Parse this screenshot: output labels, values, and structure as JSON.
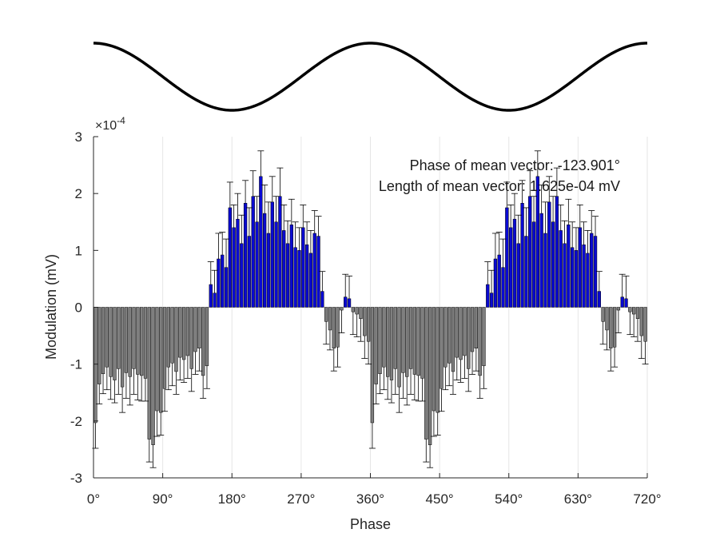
{
  "chart_data": {
    "type": "bar",
    "xlabel": "Phase",
    "ylabel": "Modulation (mV)",
    "y_exponent_label": "×10-4",
    "y_exponent_base": "×10",
    "y_exponent_power": "-4",
    "xlim": [
      0,
      720
    ],
    "ylim": [
      -3,
      3
    ],
    "x_unit_scale": 0.0001,
    "x_ticks": [
      0,
      90,
      180,
      270,
      360,
      450,
      540,
      630,
      720
    ],
    "x_tick_labels": [
      "0°",
      "90°",
      "180°",
      "270°",
      "360°",
      "450°",
      "540°",
      "630°",
      "720°"
    ],
    "y_ticks": [
      -3,
      -2,
      -1,
      0,
      1,
      2,
      3
    ],
    "y_tick_labels": [
      "-3",
      "-2",
      "-1",
      "0",
      "1",
      "2",
      "3"
    ],
    "grid": "vertical-only",
    "bin_width_deg": 5,
    "annotations": [
      "Phase of mean vector: -123.901°",
      "Length of mean vector: 1.625e-04 mV"
    ],
    "reference_wave": "cosine, one period per 360° (peaks at 0°, 360°, 720°; troughs at 180°, 540°)",
    "colors": {
      "positive_bar": "#0a0ad2",
      "negative_bar": "#7f7f7f",
      "error_bar": "#000000",
      "axis": "#262626"
    },
    "bins_center_deg": [
      2.5,
      7.5,
      12.5,
      17.5,
      22.5,
      27.5,
      32.5,
      37.5,
      42.5,
      47.5,
      52.5,
      57.5,
      62.5,
      67.5,
      72.5,
      77.5,
      82.5,
      87.5,
      92.5,
      97.5,
      102.5,
      107.5,
      112.5,
      117.5,
      122.5,
      127.5,
      132.5,
      137.5,
      142.5,
      147.5,
      152.5,
      157.5,
      162.5,
      167.5,
      172.5,
      177.5,
      182.5,
      187.5,
      192.5,
      197.5,
      202.5,
      207.5,
      212.5,
      217.5,
      222.5,
      227.5,
      232.5,
      237.5,
      242.5,
      247.5,
      252.5,
      257.5,
      262.5,
      267.5,
      272.5,
      277.5,
      282.5,
      287.5,
      292.5,
      297.5,
      302.5,
      307.5,
      312.5,
      317.5,
      322.5,
      327.5,
      332.5,
      337.5,
      342.5,
      347.5,
      352.5,
      357.5
    ],
    "values_x1e-4": [
      -2.03,
      -1.35,
      -1.17,
      -1.05,
      -1.22,
      -1.28,
      -1.08,
      -1.4,
      -1.15,
      -1.22,
      -1.08,
      -1.18,
      -1.2,
      -1.25,
      -2.32,
      -2.42,
      -1.82,
      -1.85,
      -1.43,
      -1.05,
      -0.98,
      -1.13,
      -0.88,
      -0.92,
      -0.85,
      -1.08,
      -0.78,
      -0.72,
      -1.2,
      -1.03,
      0.4,
      0.25,
      0.85,
      0.92,
      0.7,
      1.75,
      1.4,
      1.55,
      1.12,
      1.83,
      1.25,
      1.95,
      1.5,
      2.3,
      1.65,
      1.3,
      1.85,
      1.5,
      1.95,
      1.35,
      1.12,
      1.45,
      1.05,
      1.0,
      1.4,
      1.1,
      0.95,
      1.3,
      1.25,
      0.28,
      -0.25,
      -0.4,
      -0.72,
      -0.7,
      -0.05,
      0.18,
      0.15,
      -0.08,
      -0.12,
      -0.2,
      -0.5,
      -0.6
    ],
    "errors_x1e-4": [
      0.45,
      0.35,
      0.35,
      0.4,
      0.4,
      0.4,
      0.45,
      0.45,
      0.45,
      0.5,
      0.45,
      0.45,
      0.45,
      0.4,
      0.4,
      0.4,
      0.45,
      0.4,
      0.4,
      0.4,
      0.4,
      0.4,
      0.4,
      0.4,
      0.4,
      0.4,
      0.4,
      0.4,
      0.4,
      0.4,
      0.4,
      0.4,
      0.45,
      0.4,
      0.5,
      0.45,
      0.4,
      0.45,
      0.5,
      0.4,
      0.5,
      0.45,
      0.45,
      0.45,
      0.5,
      0.55,
      0.45,
      0.45,
      0.5,
      0.45,
      0.4,
      0.45,
      0.45,
      0.4,
      0.4,
      0.4,
      0.4,
      0.4,
      0.35,
      0.35,
      0.4,
      0.35,
      0.4,
      0.35,
      0.4,
      0.4,
      0.4,
      0.4,
      0.4,
      0.4,
      0.4,
      0.4
    ]
  }
}
